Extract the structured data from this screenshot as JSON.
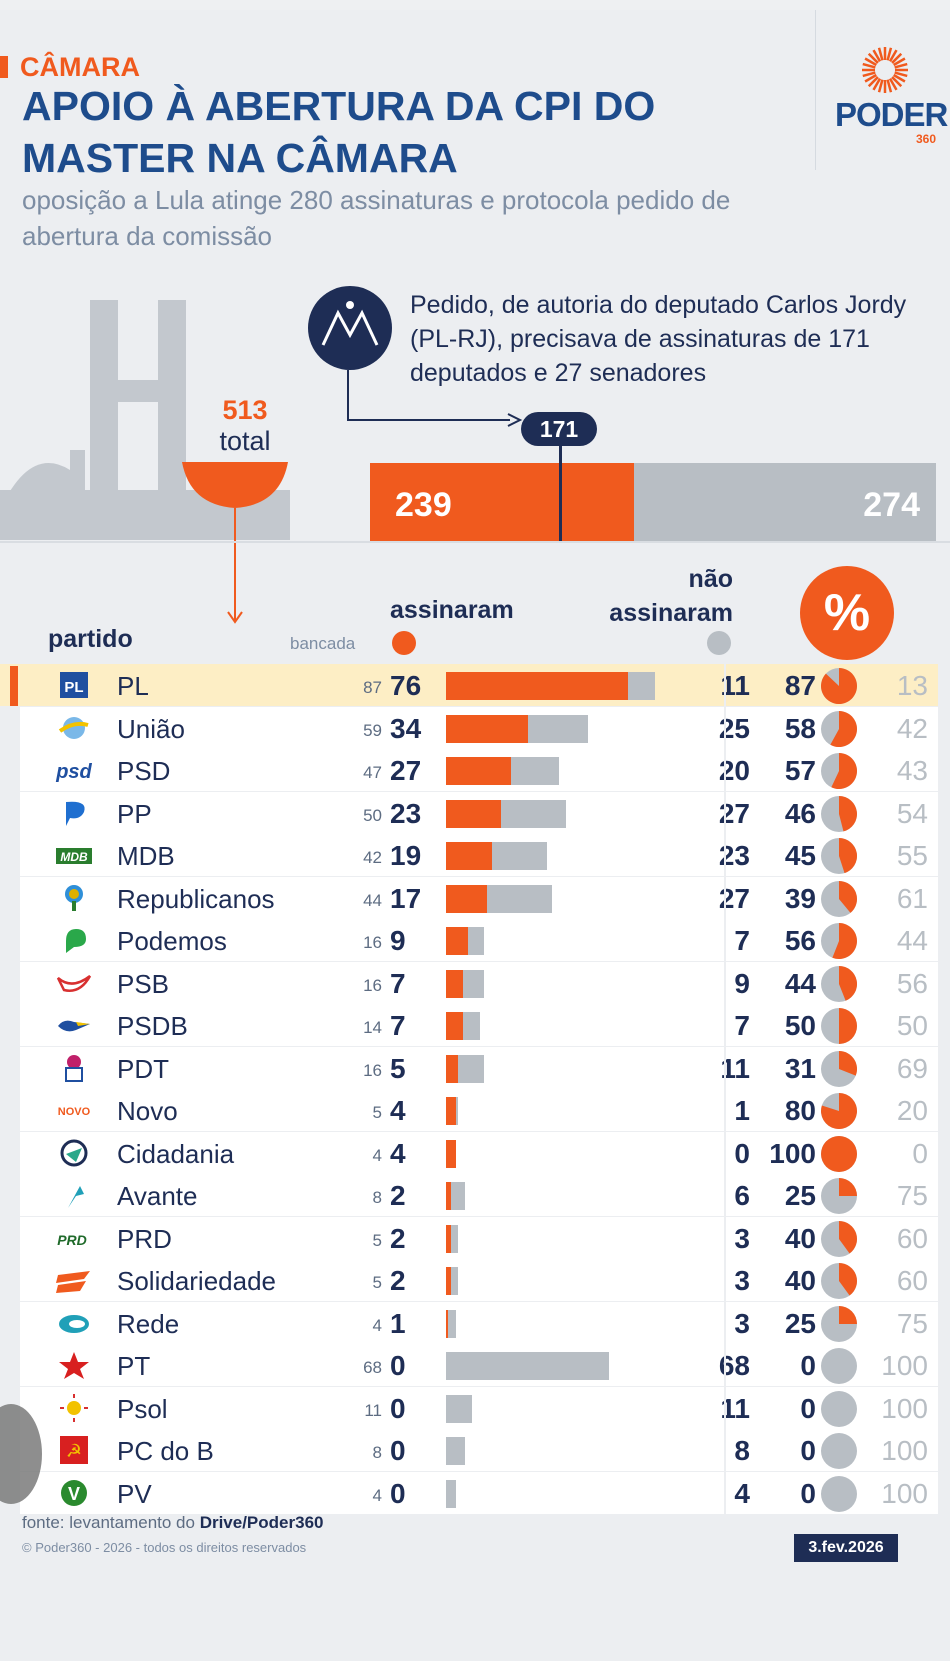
{
  "header": {
    "section": "CÂMARA",
    "title": "APOIO À ABERTURA DA CPI DO MASTER NA CÂMARA",
    "subtitle": "oposição a Lula atinge 280 assinaturas e protocola pedido de abertura da comissão",
    "logo_word": "PODER",
    "logo_sub": "360"
  },
  "colors": {
    "signed": "#f05a1e",
    "not_signed": "#b8bec4",
    "navy": "#1e2d55",
    "title_blue": "#1e4c8c",
    "highlight": "#fdeec5"
  },
  "summary": {
    "note": "Pedido, de autoria do deputado Carlos Jordy (PL-RJ), precisava de assinaturas de 171 deputados e 27 senadores",
    "total_value": "513",
    "total_label": "total",
    "threshold_label": "171",
    "signed_label": "239",
    "not_signed_label": "274"
  },
  "table_headers": {
    "partido": "partido",
    "bancada": "bancada",
    "assinaram": "assinaram",
    "nao_assinaram": "não assinaram",
    "percent_symbol": "%"
  },
  "chart_data": {
    "type": "bar",
    "summary": {
      "total": 513,
      "signed": 239,
      "not_signed": 274,
      "threshold": 171
    },
    "rows": [
      {
        "party": "PL",
        "icon": "pl-logo-icon",
        "bancada": 87,
        "signed": 76,
        "not_signed": 11,
        "pct": 87,
        "rest": 13,
        "highlight": true
      },
      {
        "party": "União",
        "icon": "uniao-logo-icon",
        "bancada": 59,
        "signed": 34,
        "not_signed": 25,
        "pct": 58,
        "rest": 42
      },
      {
        "party": "PSD",
        "icon": "psd-logo-icon",
        "bancada": 47,
        "signed": 27,
        "not_signed": 20,
        "pct": 57,
        "rest": 43
      },
      {
        "party": "PP",
        "icon": "pp-logo-icon",
        "bancada": 50,
        "signed": 23,
        "not_signed": 27,
        "pct": 46,
        "rest": 54
      },
      {
        "party": "MDB",
        "icon": "mdb-logo-icon",
        "bancada": 42,
        "signed": 19,
        "not_signed": 23,
        "pct": 45,
        "rest": 55
      },
      {
        "party": "Republicanos",
        "icon": "republicanos-logo-icon",
        "bancada": 44,
        "signed": 17,
        "not_signed": 27,
        "pct": 39,
        "rest": 61
      },
      {
        "party": "Podemos",
        "icon": "podemos-logo-icon",
        "bancada": 16,
        "signed": 9,
        "not_signed": 7,
        "pct": 56,
        "rest": 44
      },
      {
        "party": "PSB",
        "icon": "psb-logo-icon",
        "bancada": 16,
        "signed": 7,
        "not_signed": 9,
        "pct": 44,
        "rest": 56
      },
      {
        "party": "PSDB",
        "icon": "psdb-logo-icon",
        "bancada": 14,
        "signed": 7,
        "not_signed": 7,
        "pct": 50,
        "rest": 50
      },
      {
        "party": "PDT",
        "icon": "pdt-logo-icon",
        "bancada": 16,
        "signed": 5,
        "not_signed": 11,
        "pct": 31,
        "rest": 69
      },
      {
        "party": "Novo",
        "icon": "novo-logo-icon",
        "bancada": 5,
        "signed": 4,
        "not_signed": 1,
        "pct": 80,
        "rest": 20
      },
      {
        "party": "Cidadania",
        "icon": "cidadania-logo-icon",
        "bancada": 4,
        "signed": 4,
        "not_signed": 0,
        "pct": 100,
        "rest": 0
      },
      {
        "party": "Avante",
        "icon": "avante-logo-icon",
        "bancada": 8,
        "signed": 2,
        "not_signed": 6,
        "pct": 25,
        "rest": 75
      },
      {
        "party": "PRD",
        "icon": "prd-logo-icon",
        "bancada": 5,
        "signed": 2,
        "not_signed": 3,
        "pct": 40,
        "rest": 60
      },
      {
        "party": "Solidariedade",
        "icon": "solidariedade-logo-icon",
        "bancada": 5,
        "signed": 2,
        "not_signed": 3,
        "pct": 40,
        "rest": 60
      },
      {
        "party": "Rede",
        "icon": "rede-logo-icon",
        "bancada": 4,
        "signed": 1,
        "not_signed": 3,
        "pct": 25,
        "rest": 75
      },
      {
        "party": "PT",
        "icon": "pt-logo-icon",
        "bancada": 68,
        "signed": 0,
        "not_signed": 68,
        "pct": 0,
        "rest": 100
      },
      {
        "party": "Psol",
        "icon": "psol-logo-icon",
        "bancada": 11,
        "signed": 0,
        "not_signed": 11,
        "pct": 0,
        "rest": 100
      },
      {
        "party": "PC do B",
        "icon": "pcdob-logo-icon",
        "bancada": 8,
        "signed": 0,
        "not_signed": 8,
        "pct": 0,
        "rest": 100
      },
      {
        "party": "PV",
        "icon": "pv-logo-icon",
        "bancada": 4,
        "signed": 0,
        "not_signed": 4,
        "pct": 0,
        "rest": 100
      }
    ]
  },
  "footer": {
    "source_prefix": "fonte: levantamento do ",
    "source_name": "Drive/Poder360",
    "copyright": "© Poder360 - 2026 - todos os direitos reservados",
    "date": "3.fev.2026"
  }
}
